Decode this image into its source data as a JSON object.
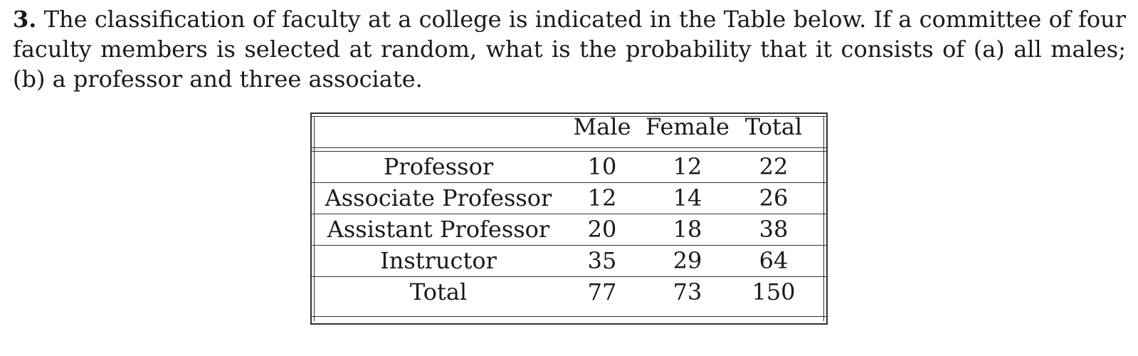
{
  "problem": {
    "number": "3.",
    "text": "The classification of faculty at a college is indicated in the Table below. If a committee of four faculty members is selected at random, what is the probability that it consists of (a) all males; (b) a professor and three associate."
  },
  "table": {
    "headers": [
      "",
      "Male",
      "Female",
      "Total"
    ],
    "rows": [
      {
        "label": "Professor",
        "male": "10",
        "female": "12",
        "total": "22"
      },
      {
        "label": "Associate Professor",
        "male": "12",
        "female": "14",
        "total": "26"
      },
      {
        "label": "Assistant Professor",
        "male": "20",
        "female": "18",
        "total": "38"
      },
      {
        "label": "Instructor",
        "male": "35",
        "female": "29",
        "total": "64"
      },
      {
        "label": "Total",
        "male": "77",
        "female": "73",
        "total": "150"
      }
    ]
  }
}
